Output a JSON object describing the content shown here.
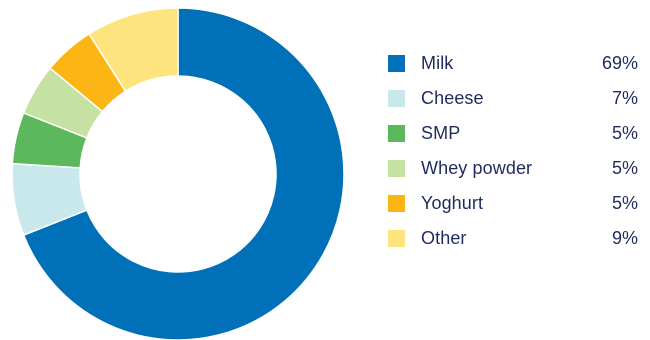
{
  "chart_data": {
    "type": "pie",
    "style": "donut",
    "legend_position": "right",
    "slices": [
      {
        "label": "Milk",
        "value": 69,
        "value_label": "69%",
        "color": "#0070b8"
      },
      {
        "label": "Cheese",
        "value": 7,
        "value_label": "7%",
        "color": "#c9e8ec"
      },
      {
        "label": "SMP",
        "value": 5,
        "value_label": "5%",
        "color": "#5cb85c"
      },
      {
        "label": "Whey powder",
        "value": 5,
        "value_label": "5%",
        "color": "#c5e2a3"
      },
      {
        "label": "Yoghurt",
        "value": 5,
        "value_label": "5%",
        "color": "#fbb514"
      },
      {
        "label": "Other",
        "value": 9,
        "value_label": "9%",
        "color": "#fde47f"
      }
    ]
  }
}
